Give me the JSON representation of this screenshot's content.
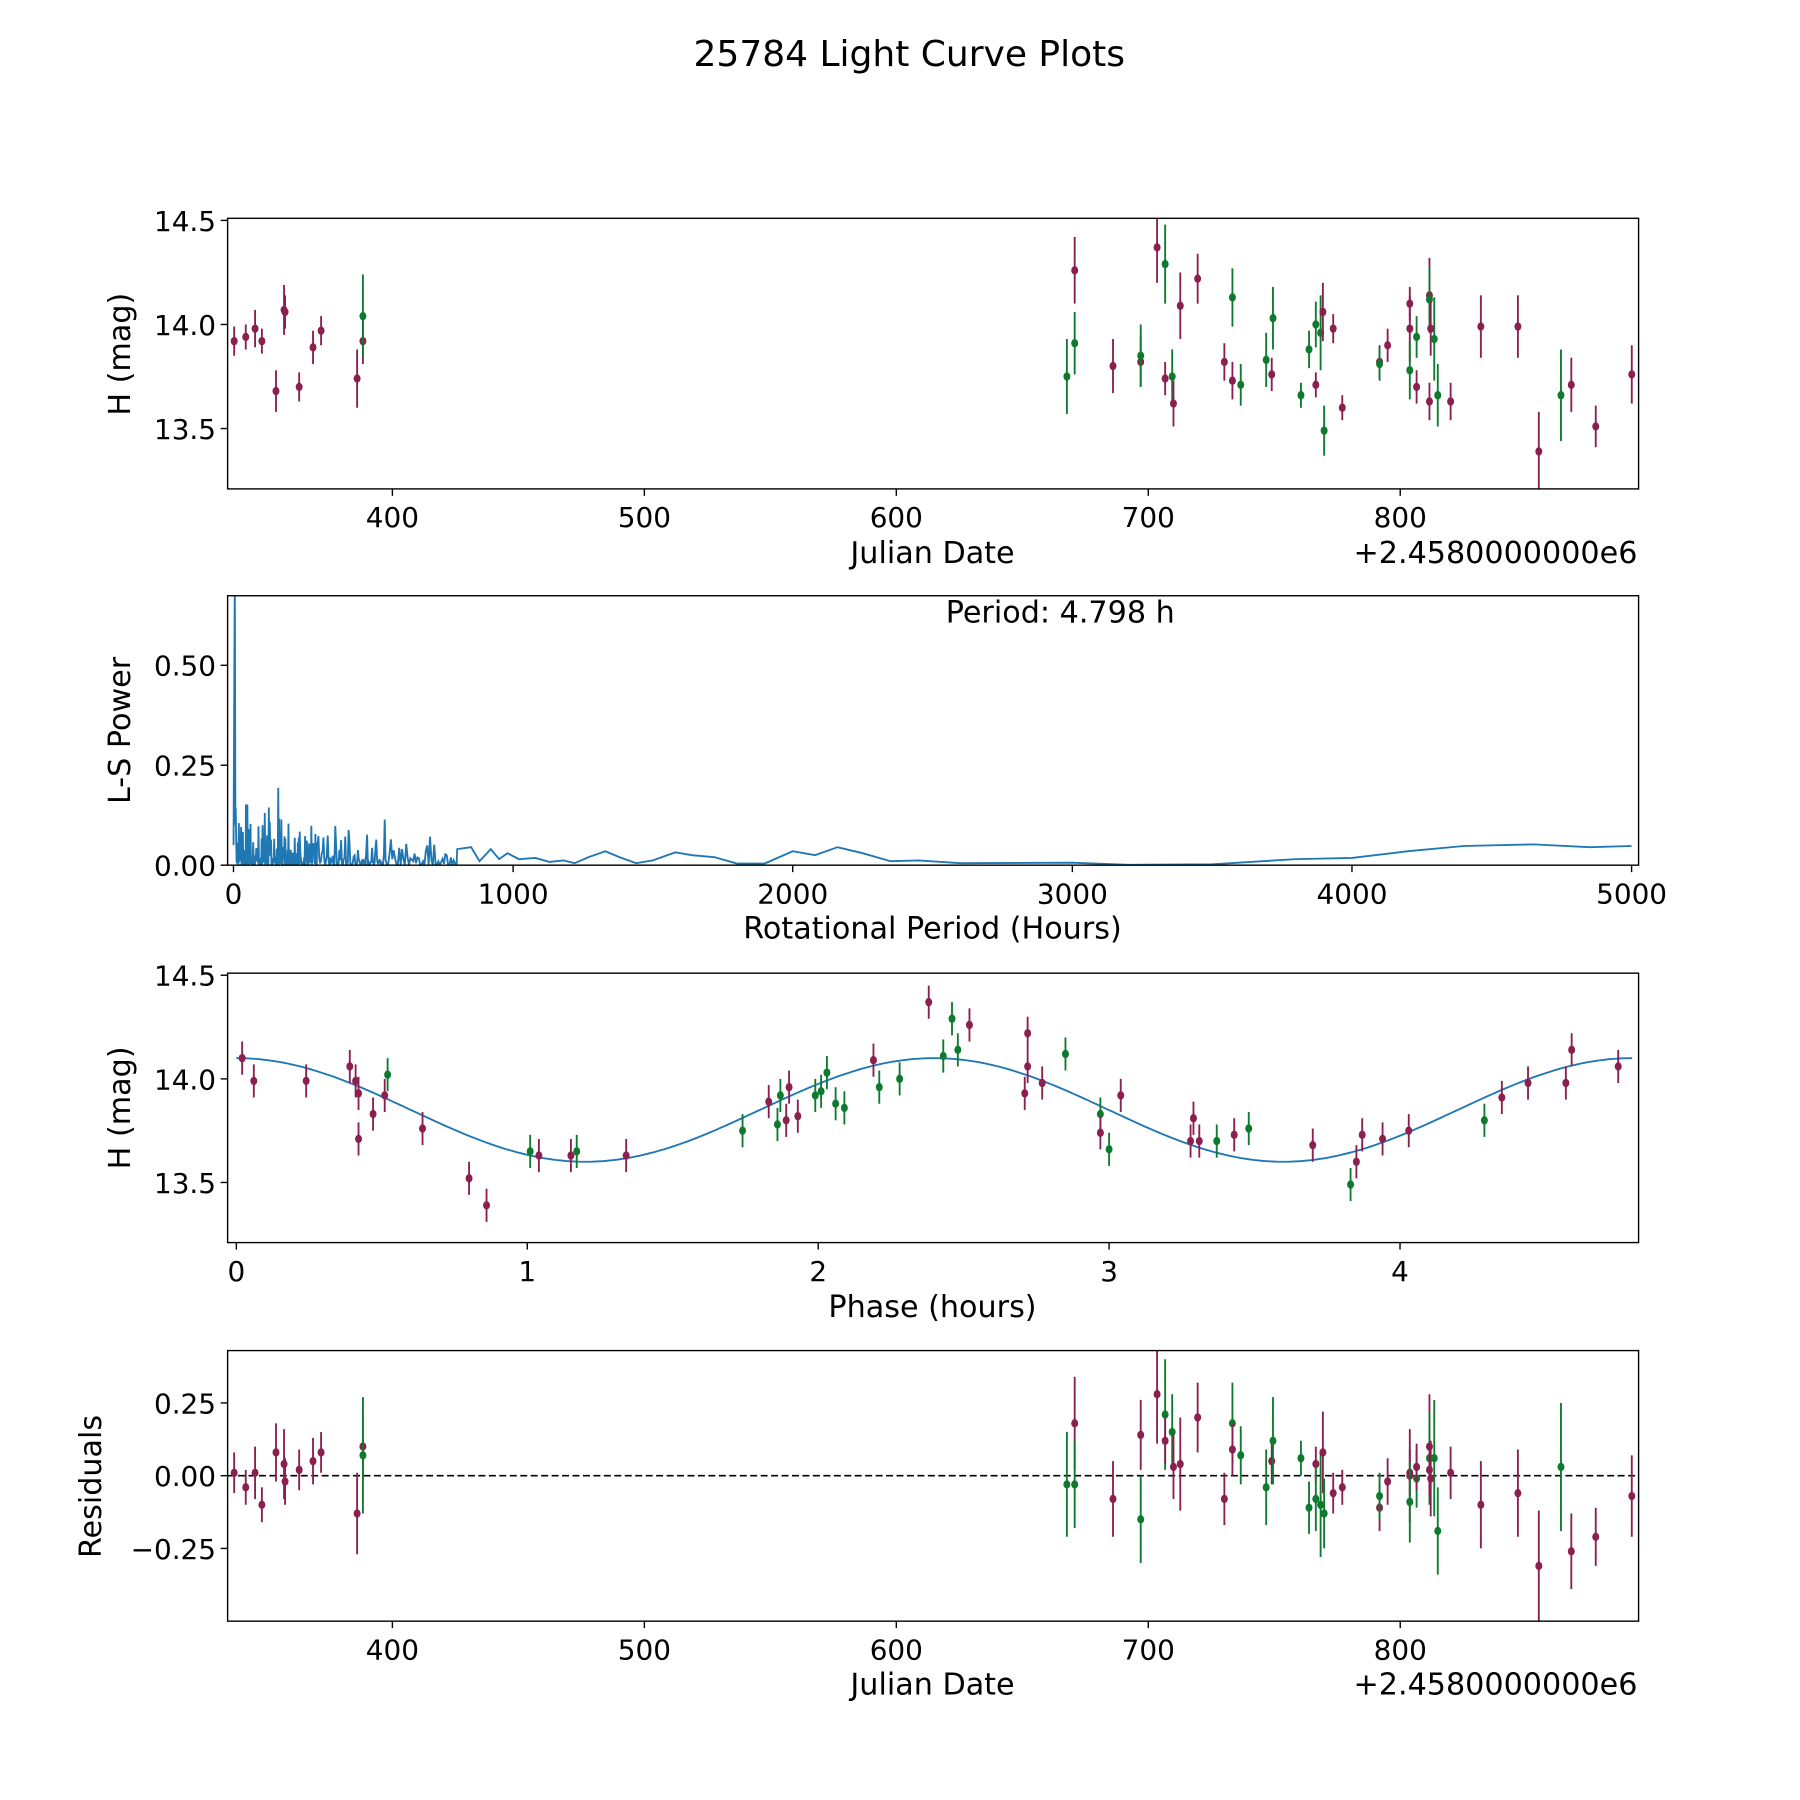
{
  "figure": {
    "title": "25784 Light Curve Plots"
  },
  "colors": {
    "filter_a": "#8B1F4F",
    "filter_b": "#0E7A2E",
    "curve": "#1f77b4",
    "axis": "#000000"
  },
  "chart_data": [
    {
      "type": "scatter",
      "name": "light-curve",
      "xlabel": "Julian Date",
      "ylabel": "H (mag)",
      "x_offset_label": "+2.4580000000e6",
      "xlim": [
        334.6,
        894.6
      ],
      "ylim": [
        13.21,
        14.51
      ],
      "xticks": [
        400,
        500,
        600,
        700,
        800
      ],
      "xtick_labels": [
        "400",
        "500",
        "600",
        "700",
        "800"
      ],
      "yticks": [
        13.5,
        14.0,
        14.5
      ],
      "ytick_labels": [
        "13.5",
        "14.0",
        "14.5"
      ],
      "point_format": [
        "julian_date",
        "H",
        "error",
        "filter"
      ],
      "points": [
        [
          337.2,
          13.92,
          0.07,
          "a"
        ],
        [
          341.8,
          13.94,
          0.06,
          "a"
        ],
        [
          345.5,
          13.98,
          0.09,
          "a"
        ],
        [
          348.2,
          13.92,
          0.06,
          "a"
        ],
        [
          353.8,
          13.68,
          0.1,
          "a"
        ],
        [
          357.0,
          14.07,
          0.12,
          "a"
        ],
        [
          357.4,
          14.06,
          0.08,
          "a"
        ],
        [
          363.0,
          13.7,
          0.07,
          "a"
        ],
        [
          368.5,
          13.89,
          0.08,
          "a"
        ],
        [
          371.7,
          13.97,
          0.07,
          "a"
        ],
        [
          386.0,
          13.74,
          0.14,
          "a"
        ],
        [
          388.3,
          13.92,
          0.11,
          "a"
        ],
        [
          388.3,
          14.04,
          0.2,
          "b"
        ],
        [
          667.7,
          13.75,
          0.18,
          "b"
        ],
        [
          670.8,
          14.26,
          0.16,
          "a"
        ],
        [
          670.8,
          13.91,
          0.15,
          "b"
        ],
        [
          686.0,
          13.8,
          0.13,
          "a"
        ],
        [
          697.0,
          13.82,
          0.12,
          "a"
        ],
        [
          697.0,
          13.85,
          0.15,
          "b"
        ],
        [
          703.5,
          14.37,
          0.17,
          "a"
        ],
        [
          706.7,
          14.29,
          0.19,
          "b"
        ],
        [
          706.7,
          13.74,
          0.08,
          "a"
        ],
        [
          709.5,
          13.75,
          0.13,
          "b"
        ],
        [
          710.0,
          13.62,
          0.11,
          "a"
        ],
        [
          712.7,
          14.09,
          0.16,
          "a"
        ],
        [
          719.6,
          14.22,
          0.12,
          "a"
        ],
        [
          730.2,
          13.82,
          0.09,
          "a"
        ],
        [
          733.4,
          14.13,
          0.14,
          "b"
        ],
        [
          733.4,
          13.73,
          0.09,
          "a"
        ],
        [
          736.7,
          13.71,
          0.1,
          "b"
        ],
        [
          746.8,
          13.83,
          0.13,
          "b"
        ],
        [
          749.0,
          13.76,
          0.08,
          "a"
        ],
        [
          749.5,
          14.03,
          0.15,
          "b"
        ],
        [
          760.6,
          13.66,
          0.06,
          "b"
        ],
        [
          763.8,
          13.88,
          0.09,
          "b"
        ],
        [
          766.5,
          13.71,
          0.06,
          "a"
        ],
        [
          766.5,
          14.0,
          0.11,
          "b"
        ],
        [
          768.4,
          13.96,
          0.18,
          "b"
        ],
        [
          769.3,
          14.06,
          0.14,
          "a"
        ],
        [
          769.8,
          13.49,
          0.12,
          "b"
        ],
        [
          773.4,
          13.98,
          0.07,
          "a"
        ],
        [
          777.0,
          13.6,
          0.06,
          "a"
        ],
        [
          791.8,
          13.82,
          0.08,
          "a"
        ],
        [
          791.8,
          13.81,
          0.08,
          "b"
        ],
        [
          795.0,
          13.9,
          0.08,
          "a"
        ],
        [
          803.8,
          14.1,
          0.08,
          "a"
        ],
        [
          803.8,
          13.98,
          0.16,
          "a"
        ],
        [
          803.8,
          13.78,
          0.14,
          "b"
        ],
        [
          806.5,
          13.94,
          0.1,
          "b"
        ],
        [
          806.5,
          13.7,
          0.08,
          "a"
        ],
        [
          811.6,
          14.14,
          0.18,
          "a"
        ],
        [
          811.6,
          14.12,
          0.16,
          "b"
        ],
        [
          811.6,
          13.63,
          0.09,
          "a"
        ],
        [
          812.1,
          13.98,
          0.13,
          "a"
        ],
        [
          813.5,
          13.93,
          0.2,
          "b"
        ],
        [
          814.9,
          13.66,
          0.15,
          "b"
        ],
        [
          820.0,
          13.63,
          0.09,
          "a"
        ],
        [
          832.0,
          13.99,
          0.15,
          "a"
        ],
        [
          846.7,
          13.99,
          0.15,
          "a"
        ],
        [
          855.0,
          13.39,
          0.19,
          "a"
        ],
        [
          863.8,
          13.66,
          0.22,
          "b"
        ],
        [
          867.9,
          13.71,
          0.13,
          "a"
        ],
        [
          877.6,
          13.51,
          0.1,
          "a"
        ],
        [
          891.9,
          13.76,
          0.14,
          "a"
        ]
      ]
    },
    {
      "type": "line",
      "name": "periodogram",
      "xlabel": "Rotational Period (Hours)",
      "ylabel": "L-S Power",
      "annotation": "Period: 4.798 h",
      "xlim": [
        -21,
        5025
      ],
      "ylim": [
        0,
        0.674
      ],
      "xticks": [
        0,
        1000,
        2000,
        3000,
        4000,
        5000
      ],
      "xtick_labels": [
        "0",
        "1000",
        "2000",
        "3000",
        "4000",
        "5000"
      ],
      "yticks": [
        0,
        0.25,
        0.5
      ],
      "ytick_labels": [
        "0.00",
        "0.25",
        "0.50"
      ],
      "best_period_hours": 4.798,
      "noisy_region_peaks": [
        [
          4.8,
          0.68
        ],
        [
          10,
          0.22
        ],
        [
          30,
          0.22
        ],
        [
          50,
          0.2
        ],
        [
          85,
          0.18
        ],
        [
          120,
          0.2
        ],
        [
          160,
          0.12
        ],
        [
          210,
          0.16
        ],
        [
          250,
          0.17
        ],
        [
          300,
          0.13
        ],
        [
          370,
          0.15
        ],
        [
          420,
          0.08
        ],
        [
          480,
          0.1
        ],
        [
          530,
          0.09
        ],
        [
          570,
          0.15
        ],
        [
          620,
          0.1
        ],
        [
          660,
          0.09
        ],
        [
          700,
          0.07
        ],
        [
          740,
          0.1
        ],
        [
          780,
          0.06
        ],
        [
          800,
          0.04
        ]
      ],
      "smooth_region": [
        [
          800,
          0.04
        ],
        [
          850,
          0.045
        ],
        [
          880,
          0.01
        ],
        [
          920,
          0.04
        ],
        [
          950,
          0.015
        ],
        [
          980,
          0.03
        ],
        [
          1020,
          0.015
        ],
        [
          1080,
          0.018
        ],
        [
          1130,
          0.008
        ],
        [
          1180,
          0.012
        ],
        [
          1220,
          0.005
        ],
        [
          1270,
          0.02
        ],
        [
          1330,
          0.035
        ],
        [
          1380,
          0.02
        ],
        [
          1440,
          0.005
        ],
        [
          1500,
          0.012
        ],
        [
          1580,
          0.032
        ],
        [
          1640,
          0.025
        ],
        [
          1720,
          0.02
        ],
        [
          1800,
          0.004
        ],
        [
          1900,
          0.004
        ],
        [
          2000,
          0.035
        ],
        [
          2080,
          0.025
        ],
        [
          2160,
          0.045
        ],
        [
          2250,
          0.03
        ],
        [
          2350,
          0.01
        ],
        [
          2450,
          0.012
        ],
        [
          2600,
          0.005
        ],
        [
          3000,
          0.006
        ],
        [
          3200,
          0.001
        ],
        [
          3500,
          0.002
        ],
        [
          3800,
          0.015
        ],
        [
          4000,
          0.018
        ],
        [
          4200,
          0.035
        ],
        [
          4400,
          0.048
        ],
        [
          4650,
          0.052
        ],
        [
          4850,
          0.045
        ],
        [
          5000,
          0.048
        ]
      ]
    },
    {
      "type": "scatter",
      "name": "phased-light-curve",
      "xlabel": "Phase (hours)",
      "ylabel": "H (mag)",
      "xlim": [
        -0.03,
        4.82
      ],
      "ylim": [
        13.21,
        14.51
      ],
      "xticks": [
        0,
        1,
        2,
        3,
        4
      ],
      "xtick_labels": [
        "0",
        "1",
        "2",
        "3",
        "4"
      ],
      "yticks": [
        13.5,
        14.0,
        14.5
      ],
      "ytick_labels": [
        "13.5",
        "14.0",
        "14.5"
      ],
      "model": {
        "mean": 13.85,
        "amplitude": 0.25,
        "half_period_hours": 2.399,
        "range": [
          0,
          4.798
        ]
      },
      "phase_error": 0.08,
      "point_format": [
        "phase_hours",
        "H",
        "filter"
      ],
      "points": [
        [
          0.02,
          14.1,
          "a"
        ],
        [
          0.06,
          13.99,
          "a"
        ],
        [
          0.24,
          13.99,
          "a"
        ],
        [
          0.39,
          14.06,
          "a"
        ],
        [
          0.41,
          13.99,
          "a"
        ],
        [
          0.42,
          13.93,
          "a"
        ],
        [
          0.42,
          13.71,
          "a"
        ],
        [
          0.47,
          13.83,
          "a"
        ],
        [
          0.51,
          13.92,
          "a"
        ],
        [
          0.52,
          14.02,
          "b"
        ],
        [
          0.64,
          13.76,
          "a"
        ],
        [
          0.8,
          13.52,
          "a"
        ],
        [
          0.86,
          13.39,
          "a"
        ],
        [
          1.01,
          13.65,
          "b"
        ],
        [
          1.04,
          13.63,
          "a"
        ],
        [
          1.15,
          13.63,
          "a"
        ],
        [
          1.17,
          13.65,
          "b"
        ],
        [
          1.34,
          13.63,
          "a"
        ],
        [
          1.74,
          13.75,
          "b"
        ],
        [
          1.83,
          13.89,
          "a"
        ],
        [
          1.86,
          13.78,
          "b"
        ],
        [
          1.87,
          13.92,
          "b"
        ],
        [
          1.89,
          13.8,
          "a"
        ],
        [
          1.9,
          13.96,
          "a"
        ],
        [
          1.93,
          13.82,
          "a"
        ],
        [
          1.99,
          13.92,
          "b"
        ],
        [
          2.01,
          13.94,
          "b"
        ],
        [
          2.03,
          14.03,
          "b"
        ],
        [
          2.06,
          13.88,
          "b"
        ],
        [
          2.09,
          13.86,
          "b"
        ],
        [
          2.19,
          14.09,
          "a"
        ],
        [
          2.21,
          13.96,
          "b"
        ],
        [
          2.28,
          14.0,
          "b"
        ],
        [
          2.38,
          14.37,
          "a"
        ],
        [
          2.43,
          14.11,
          "b"
        ],
        [
          2.46,
          14.29,
          "b"
        ],
        [
          2.48,
          14.14,
          "b"
        ],
        [
          2.52,
          14.26,
          "a"
        ],
        [
          2.71,
          13.93,
          "a"
        ],
        [
          2.72,
          14.22,
          "a"
        ],
        [
          2.72,
          14.06,
          "a"
        ],
        [
          2.77,
          13.98,
          "a"
        ],
        [
          2.85,
          14.12,
          "b"
        ],
        [
          2.97,
          13.83,
          "b"
        ],
        [
          2.97,
          13.74,
          "a"
        ],
        [
          3.0,
          13.66,
          "b"
        ],
        [
          3.04,
          13.92,
          "a"
        ],
        [
          3.28,
          13.7,
          "a"
        ],
        [
          3.29,
          13.81,
          "a"
        ],
        [
          3.31,
          13.7,
          "a"
        ],
        [
          3.37,
          13.7,
          "b"
        ],
        [
          3.43,
          13.73,
          "a"
        ],
        [
          3.48,
          13.76,
          "b"
        ],
        [
          3.7,
          13.68,
          "a"
        ],
        [
          3.83,
          13.49,
          "b"
        ],
        [
          3.85,
          13.6,
          "a"
        ],
        [
          3.87,
          13.73,
          "a"
        ],
        [
          3.94,
          13.71,
          "a"
        ],
        [
          4.03,
          13.75,
          "a"
        ],
        [
          4.29,
          13.8,
          "b"
        ],
        [
          4.35,
          13.91,
          "a"
        ],
        [
          4.44,
          13.98,
          "a"
        ],
        [
          4.57,
          13.98,
          "a"
        ],
        [
          4.59,
          14.14,
          "a"
        ],
        [
          4.75,
          14.06,
          "a"
        ]
      ]
    },
    {
      "type": "scatter",
      "name": "residuals",
      "xlabel": "Julian Date",
      "ylabel": "Residuals",
      "x_offset_label": "+2.4580000000e6",
      "xlim": [
        334.6,
        894.6
      ],
      "ylim": [
        -0.5,
        0.43
      ],
      "xticks": [
        400,
        500,
        600,
        700,
        800
      ],
      "xtick_labels": [
        "400",
        "500",
        "600",
        "700",
        "800"
      ],
      "yticks": [
        0.25,
        0,
        -0.25
      ],
      "ytick_labels": [
        "0.25",
        "0.00",
        "−0.25"
      ],
      "reference_line": 0,
      "note": "residual values aligned by index with light-curve points",
      "values": [
        0.01,
        -0.04,
        0.01,
        -0.1,
        0.08,
        0.04,
        -0.02,
        0.02,
        0.05,
        0.08,
        -0.13,
        0.1,
        0.07,
        -0.03,
        0.18,
        -0.03,
        -0.08,
        0.14,
        -0.15,
        0.28,
        0.21,
        0.12,
        0.15,
        0.03,
        0.04,
        0.2,
        -0.08,
        0.18,
        0.09,
        0.07,
        -0.04,
        0.05,
        0.12,
        0.06,
        -0.11,
        0.04,
        -0.08,
        -0.1,
        0.08,
        -0.13,
        -0.06,
        -0.04,
        -0.11,
        -0.07,
        -0.02,
        0.01,
        0.0,
        -0.09,
        -0.01,
        0.03,
        0.1,
        0.06,
        0.02,
        -0.01,
        0.06,
        -0.19,
        0.01,
        -0.1,
        -0.06,
        -0.31,
        0.03,
        -0.26,
        -0.21,
        -0.07
      ]
    }
  ]
}
